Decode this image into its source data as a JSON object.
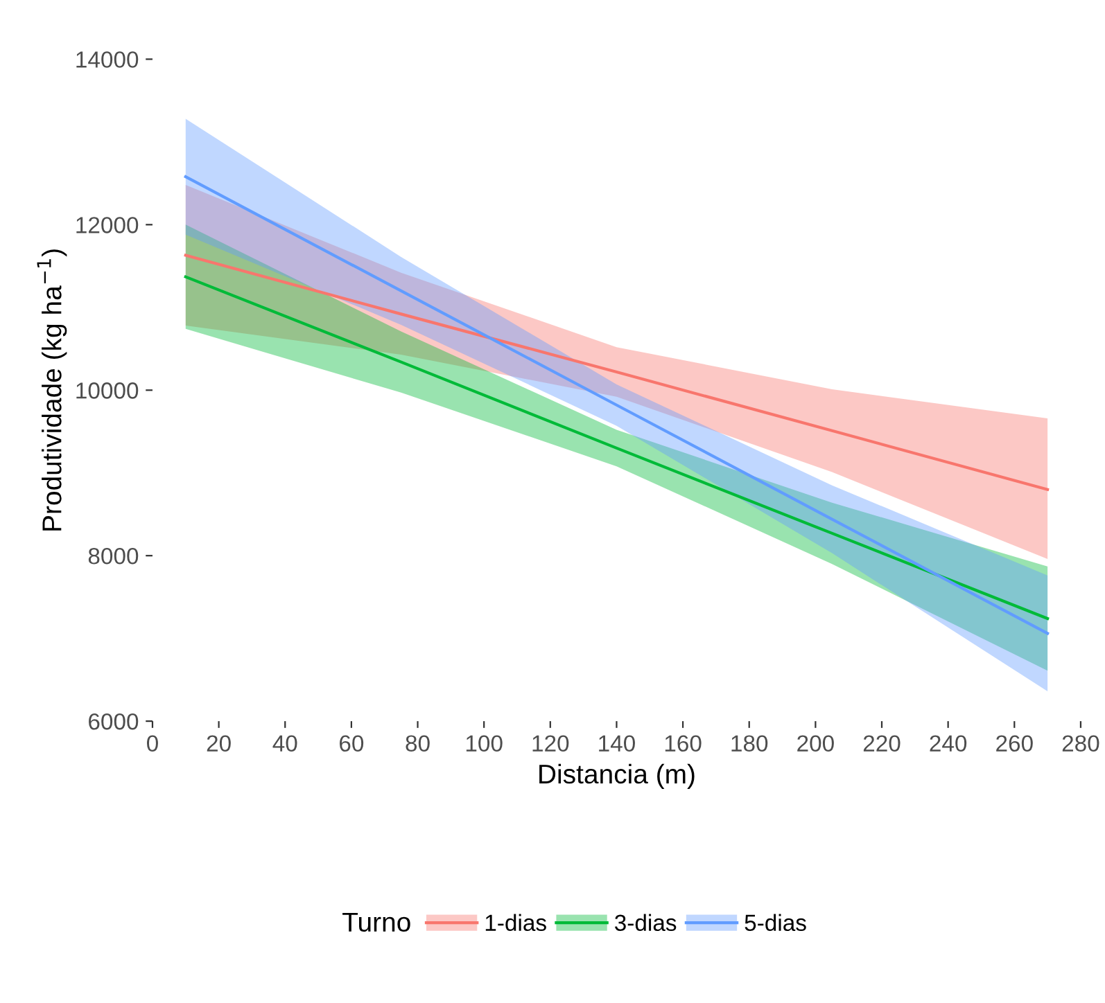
{
  "chart_data": {
    "type": "line",
    "xlabel": "Distancia (m)",
    "ylabel": "Produtividade (kg ha$^{−1}$)",
    "legend_title": "Turno",
    "legend": "bottom",
    "grid": false,
    "marker": "none",
    "line_style": "solid",
    "xlim": [
      0,
      280
    ],
    "xticks": [
      0,
      20,
      40,
      60,
      80,
      100,
      120,
      140,
      160,
      180,
      200,
      220,
      240,
      260,
      280
    ],
    "ylim": [
      6000,
      14000
    ],
    "yticks": [
      6000,
      8000,
      10000,
      12000,
      14000
    ],
    "series": [
      {
        "name": "1-dias",
        "color": "#F8766D",
        "x": [
          10,
          75,
          140,
          205,
          270
        ],
        "values": [
          11630,
          10920,
          10220,
          9510,
          8800
        ],
        "lower": [
          10780,
          10430,
          9920,
          9010,
          7960
        ],
        "upper": [
          12480,
          11420,
          10520,
          10010,
          9660
        ]
      },
      {
        "name": "3-dias",
        "color": "#00BA38",
        "x": [
          10,
          75,
          140,
          205,
          270
        ],
        "values": [
          11370,
          10340,
          9300,
          8270,
          7240
        ],
        "lower": [
          10740,
          9970,
          9080,
          7900,
          6610
        ],
        "upper": [
          12000,
          10710,
          9520,
          8640,
          7870
        ]
      },
      {
        "name": "5-dias",
        "color": "#619CFF",
        "x": [
          10,
          75,
          140,
          205,
          270
        ],
        "values": [
          12580,
          11200,
          9820,
          8440,
          7060
        ],
        "lower": [
          11880,
          10790,
          9570,
          8030,
          6360
        ],
        "upper": [
          13280,
          11610,
          10070,
          8850,
          7760
        ]
      }
    ]
  }
}
